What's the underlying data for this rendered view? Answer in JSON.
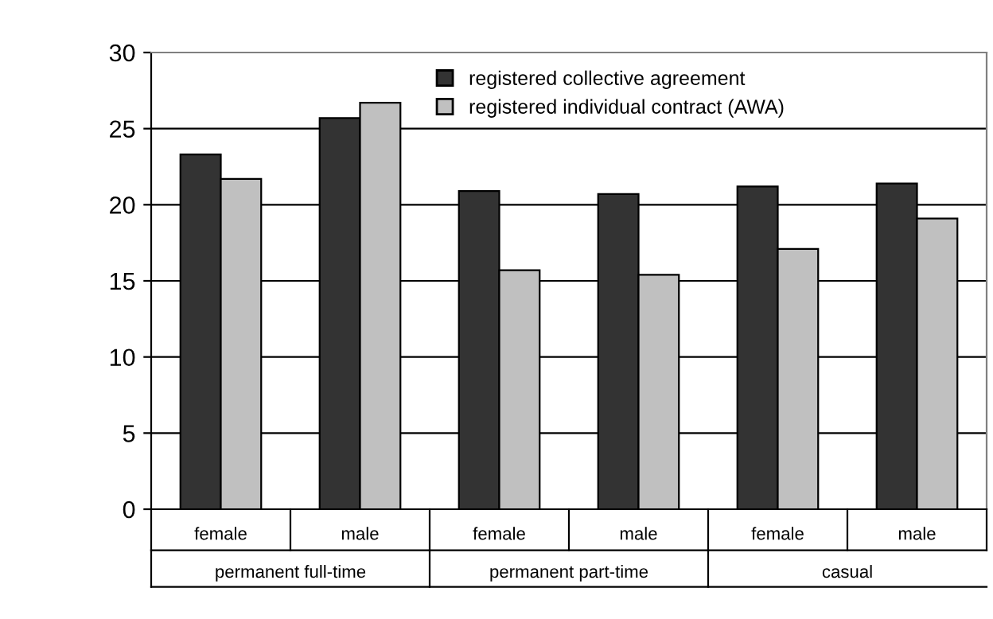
{
  "chart_data": {
    "type": "bar",
    "categories": [
      "female",
      "male",
      "female",
      "male",
      "female",
      "male"
    ],
    "series": [
      {
        "name": "registered collective agreement",
        "color": "#333333",
        "values": [
          23.3,
          25.7,
          20.9,
          20.7,
          21.2,
          21.4
        ]
      },
      {
        "name": "registered individual contract (AWA)",
        "color": "#c0c0c0",
        "values": [
          21.7,
          26.7,
          15.7,
          15.4,
          17.1,
          19.1
        ]
      }
    ],
    "ylim": [
      0,
      30
    ],
    "yticks": [
      0,
      5,
      10,
      15,
      20,
      25,
      30
    ],
    "grid": "y",
    "legend": "top",
    "annotations": [
      "permanent full-time",
      "permanent part-time",
      "casual"
    ]
  }
}
